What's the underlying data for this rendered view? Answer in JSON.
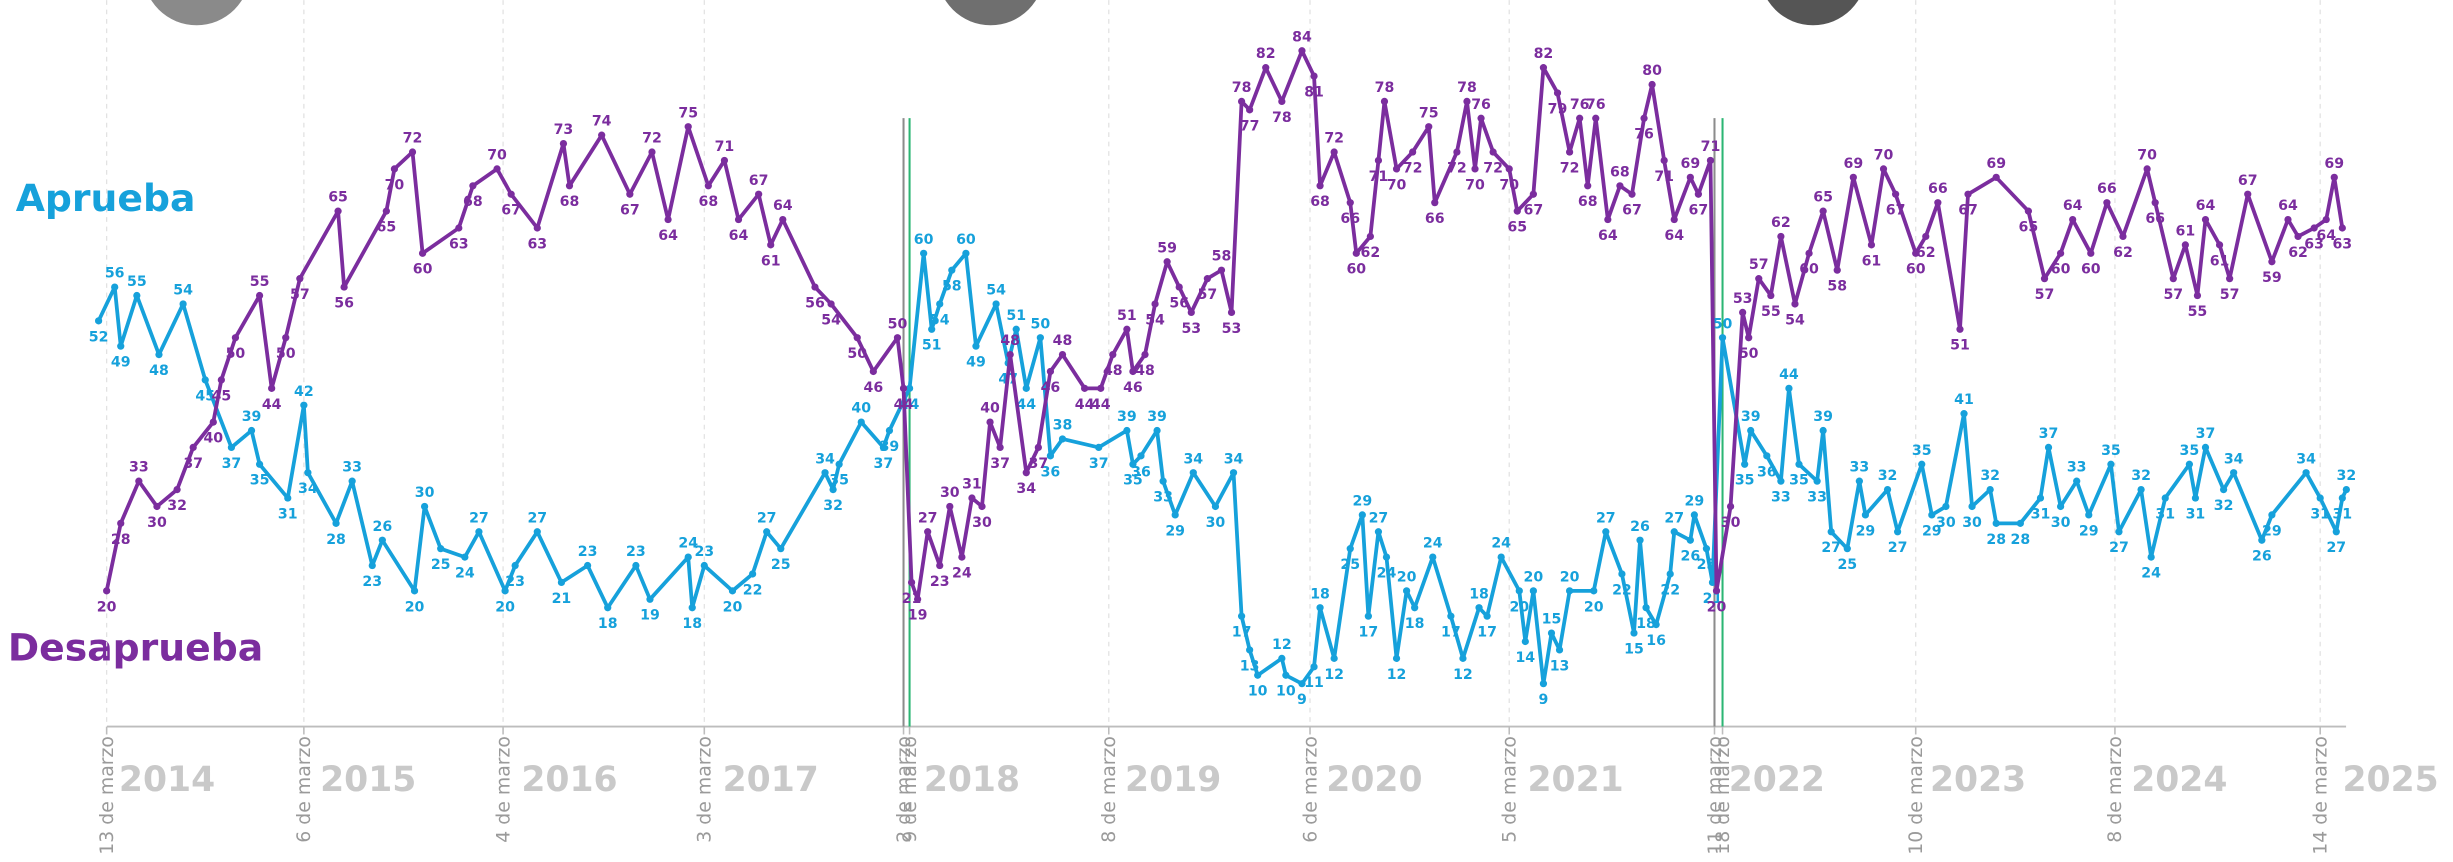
{
  "chart_data": {
    "type": "line",
    "xlim": [
      2013.67,
      2025.86
    ],
    "ylim": [
      0,
      90
    ],
    "xticks": [
      {
        "value": 2014.5,
        "label": "2014"
      },
      {
        "value": 2015.5,
        "label": "2015"
      },
      {
        "value": 2016.5,
        "label": "2016"
      },
      {
        "value": 2017.5,
        "label": "2017"
      },
      {
        "value": 2018.5,
        "label": "2018"
      },
      {
        "value": 2019.5,
        "label": "2019"
      },
      {
        "value": 2020.5,
        "label": "2020"
      },
      {
        "value": 2021.5,
        "label": "2021"
      },
      {
        "value": 2022.5,
        "label": "2022"
      },
      {
        "value": 2023.5,
        "label": "2023"
      },
      {
        "value": 2024.5,
        "label": "2024"
      },
      {
        "value": 2025.55,
        "label": "2025"
      }
    ],
    "date_markers": [
      {
        "x": 2014.2,
        "label": "13 de marzo"
      },
      {
        "x": 2015.18,
        "label": "6 de marzo"
      },
      {
        "x": 2016.17,
        "label": "4 de marzo"
      },
      {
        "x": 2017.17,
        "label": "3 de marzo"
      },
      {
        "x": 2018.16,
        "label": "2 de marzo",
        "style": "solid"
      },
      {
        "x": 2018.19,
        "label": "9 de marzo",
        "style": "solid",
        "color": "#2bb673"
      },
      {
        "x": 2019.18,
        "label": "8 de marzo"
      },
      {
        "x": 2020.18,
        "label": "6 de marzo"
      },
      {
        "x": 2021.17,
        "label": "5 de marzo"
      },
      {
        "x": 2022.19,
        "label": "11 de marzo",
        "style": "solid"
      },
      {
        "x": 2022.23,
        "label": "18 de marzo",
        "style": "solid",
        "color": "#2bb673"
      },
      {
        "x": 2023.19,
        "label": "10 de marzo"
      },
      {
        "x": 2024.18,
        "label": "8 de marzo"
      },
      {
        "x": 2025.2,
        "label": "14 de marzo"
      }
    ],
    "series": [
      {
        "name": "Aprueba",
        "color": "#16a1db",
        "x": [
          2014.16,
          2014.24,
          2014.27,
          2014.35,
          2014.46,
          2014.58,
          2014.69,
          2014.82,
          2014.92,
          2014.96,
          2015.1,
          2015.18,
          2015.2,
          2015.34,
          2015.42,
          2015.52,
          2015.57,
          2015.73,
          2015.78,
          2015.86,
          2015.98,
          2016.05,
          2016.18,
          2016.23,
          2016.34,
          2016.46,
          2016.59,
          2016.69,
          2016.83,
          2016.9,
          2017.09,
          2017.11,
          2017.17,
          2017.31,
          2017.41,
          2017.48,
          2017.55,
          2017.77,
          2017.81,
          2017.84,
          2017.95,
          2018.06,
          2018.09,
          2018.19,
          2018.26,
          2018.3,
          2018.34,
          2018.4,
          2018.47,
          2018.52,
          2018.62,
          2018.68,
          2018.72,
          2018.77,
          2018.84,
          2018.89,
          2018.95,
          2019.13,
          2019.27,
          2019.3,
          2019.34,
          2019.42,
          2019.45,
          2019.51,
          2019.6,
          2019.71,
          2019.8,
          2019.84,
          2019.88,
          2019.92,
          2020.04,
          2020.06,
          2020.14,
          2020.2,
          2020.23,
          2020.3,
          2020.38,
          2020.44,
          2020.47,
          2020.52,
          2020.56,
          2020.61,
          2020.66,
          2020.7,
          2020.79,
          2020.88,
          2020.94,
          2021.02,
          2021.06,
          2021.13,
          2021.22,
          2021.25,
          2021.29,
          2021.34,
          2021.38,
          2021.42,
          2021.47,
          2021.59,
          2021.65,
          2021.73,
          2021.79,
          2021.82,
          2021.85,
          2021.9,
          2021.97,
          2021.99,
          2022.07,
          2022.09,
          2022.15,
          2022.18,
          2022.23,
          2022.34,
          2022.37,
          2022.45,
          2022.52,
          2022.56,
          2022.61,
          2022.7,
          2022.73,
          2022.77,
          2022.85,
          2022.91,
          2022.94,
          2023.05,
          2023.1,
          2023.22,
          2023.27,
          2023.34,
          2023.43,
          2023.47,
          2023.56,
          2023.59,
          2023.71,
          2023.81,
          2023.85,
          2023.91,
          2023.99,
          2024.05,
          2024.16,
          2024.2,
          2024.31,
          2024.36,
          2024.43,
          2024.55,
          2024.58,
          2024.63,
          2024.72,
          2024.77,
          2024.91,
          2024.96,
          2025.13,
          2025.2,
          2025.28,
          2025.31,
          2025.33
        ],
        "values": [
          52,
          56,
          49,
          55,
          48,
          54,
          45,
          37,
          39,
          35,
          31,
          42,
          34,
          28,
          33,
          23,
          26,
          20,
          30,
          25,
          24,
          27,
          20,
          23,
          27,
          21,
          23,
          18,
          23,
          19,
          24,
          18,
          23,
          20,
          22,
          27,
          25,
          34,
          32,
          35,
          40,
          37,
          39,
          44,
          60,
          51,
          54,
          58,
          60,
          49,
          54,
          47,
          51,
          44,
          50,
          36,
          38,
          37,
          39,
          35,
          36,
          39,
          33,
          29,
          34,
          30,
          34,
          17,
          13,
          10,
          12,
          10,
          9,
          11,
          18,
          12,
          25,
          29,
          17,
          27,
          24,
          12,
          20,
          18,
          24,
          17,
          12,
          18,
          17,
          24,
          20,
          14,
          20,
          9,
          15,
          13,
          20,
          20,
          27,
          22,
          15,
          26,
          18,
          16,
          22,
          27,
          26,
          29,
          25,
          21,
          50,
          35,
          39,
          36,
          33,
          44,
          35,
          33,
          39,
          27,
          25,
          33,
          29,
          32,
          27,
          35,
          29,
          30,
          41,
          30,
          32,
          28,
          28,
          31,
          37,
          30,
          33,
          29,
          35,
          27,
          32,
          24,
          31,
          35,
          31,
          37,
          32,
          34,
          26,
          29,
          34,
          31,
          27,
          31,
          32
        ]
      },
      {
        "name": "Desaprueba",
        "color": "#7b2d9e",
        "x": [
          2014.2,
          2014.27,
          2014.36,
          2014.45,
          2014.55,
          2014.63,
          2014.73,
          2014.77,
          2014.84,
          2014.96,
          2015.02,
          2015.09,
          2015.16,
          2015.35,
          2015.38,
          2015.59,
          2015.63,
          2015.72,
          2015.77,
          2015.95,
          2016.02,
          2016.14,
          2016.21,
          2016.34,
          2016.47,
          2016.5,
          2016.66,
          2016.8,
          2016.91,
          2016.99,
          2017.09,
          2017.19,
          2017.27,
          2017.34,
          2017.44,
          2017.5,
          2017.56,
          2017.72,
          2017.8,
          2017.93,
          2018.01,
          2018.13,
          2018.16,
          2018.2,
          2018.23,
          2018.28,
          2018.34,
          2018.39,
          2018.45,
          2018.5,
          2018.55,
          2018.59,
          2018.64,
          2018.69,
          2018.77,
          2018.83,
          2018.89,
          2018.95,
          2019.06,
          2019.14,
          2019.2,
          2019.27,
          2019.3,
          2019.36,
          2019.41,
          2019.47,
          2019.53,
          2019.59,
          2019.67,
          2019.74,
          2019.79,
          2019.84,
          2019.88,
          2019.96,
          2020.04,
          2020.14,
          2020.2,
          2020.23,
          2020.3,
          2020.38,
          2020.41,
          2020.48,
          2020.52,
          2020.55,
          2020.61,
          2020.69,
          2020.77,
          2020.8,
          2020.91,
          2020.96,
          2021.0,
          2021.03,
          2021.09,
          2021.17,
          2021.21,
          2021.29,
          2021.34,
          2021.41,
          2021.47,
          2021.52,
          2021.56,
          2021.6,
          2021.66,
          2021.72,
          2021.78,
          2021.84,
          2021.88,
          2021.94,
          2021.99,
          2022.07,
          2022.11,
          2022.17,
          2022.2,
          2022.27,
          2022.33,
          2022.36,
          2022.41,
          2022.47,
          2022.52,
          2022.59,
          2022.66,
          2022.73,
          2022.8,
          2022.88,
          2022.97,
          2023.03,
          2023.09,
          2023.19,
          2023.24,
          2023.3,
          2023.41,
          2023.45,
          2023.59,
          2023.75,
          2023.83,
          2023.91,
          2023.97,
          2024.06,
          2024.14,
          2024.22,
          2024.34,
          2024.38,
          2024.47,
          2024.53,
          2024.59,
          2024.63,
          2024.7,
          2024.75,
          2024.84,
          2024.96,
          2025.04,
          2025.09,
          2025.17,
          2025.23,
          2025.27,
          2025.31
        ],
        "values": [
          20,
          28,
          33,
          30,
          32,
          37,
          40,
          45,
          50,
          55,
          44,
          50,
          57,
          65,
          56,
          65,
          70,
          72,
          60,
          63,
          68,
          70,
          67,
          63,
          73,
          68,
          74,
          67,
          72,
          64,
          75,
          68,
          71,
          64,
          67,
          61,
          64,
          56,
          54,
          50,
          46,
          50,
          44,
          21,
          19,
          27,
          23,
          30,
          24,
          31,
          30,
          40,
          37,
          48,
          34,
          37,
          46,
          48,
          44,
          44,
          48,
          51,
          46,
          48,
          54,
          59,
          56,
          53,
          57,
          58,
          53,
          78,
          77,
          82,
          78,
          84,
          81,
          68,
          72,
          66,
          60,
          62,
          71,
          78,
          70,
          72,
          75,
          66,
          72,
          78,
          70,
          76,
          72,
          70,
          65,
          67,
          82,
          79,
          72,
          76,
          68,
          76,
          64,
          68,
          67,
          76,
          80,
          71,
          64,
          69,
          67,
          71,
          20,
          30,
          53,
          50,
          57,
          55,
          62,
          54,
          60,
          65,
          58,
          69,
          61,
          70,
          67,
          60,
          62,
          66,
          51,
          67,
          69,
          65,
          57,
          60,
          64,
          60,
          66,
          62,
          70,
          66,
          57,
          61,
          55,
          64,
          61,
          57,
          67,
          59,
          64,
          62,
          63,
          64,
          69,
          63
        ]
      }
    ]
  }
}
